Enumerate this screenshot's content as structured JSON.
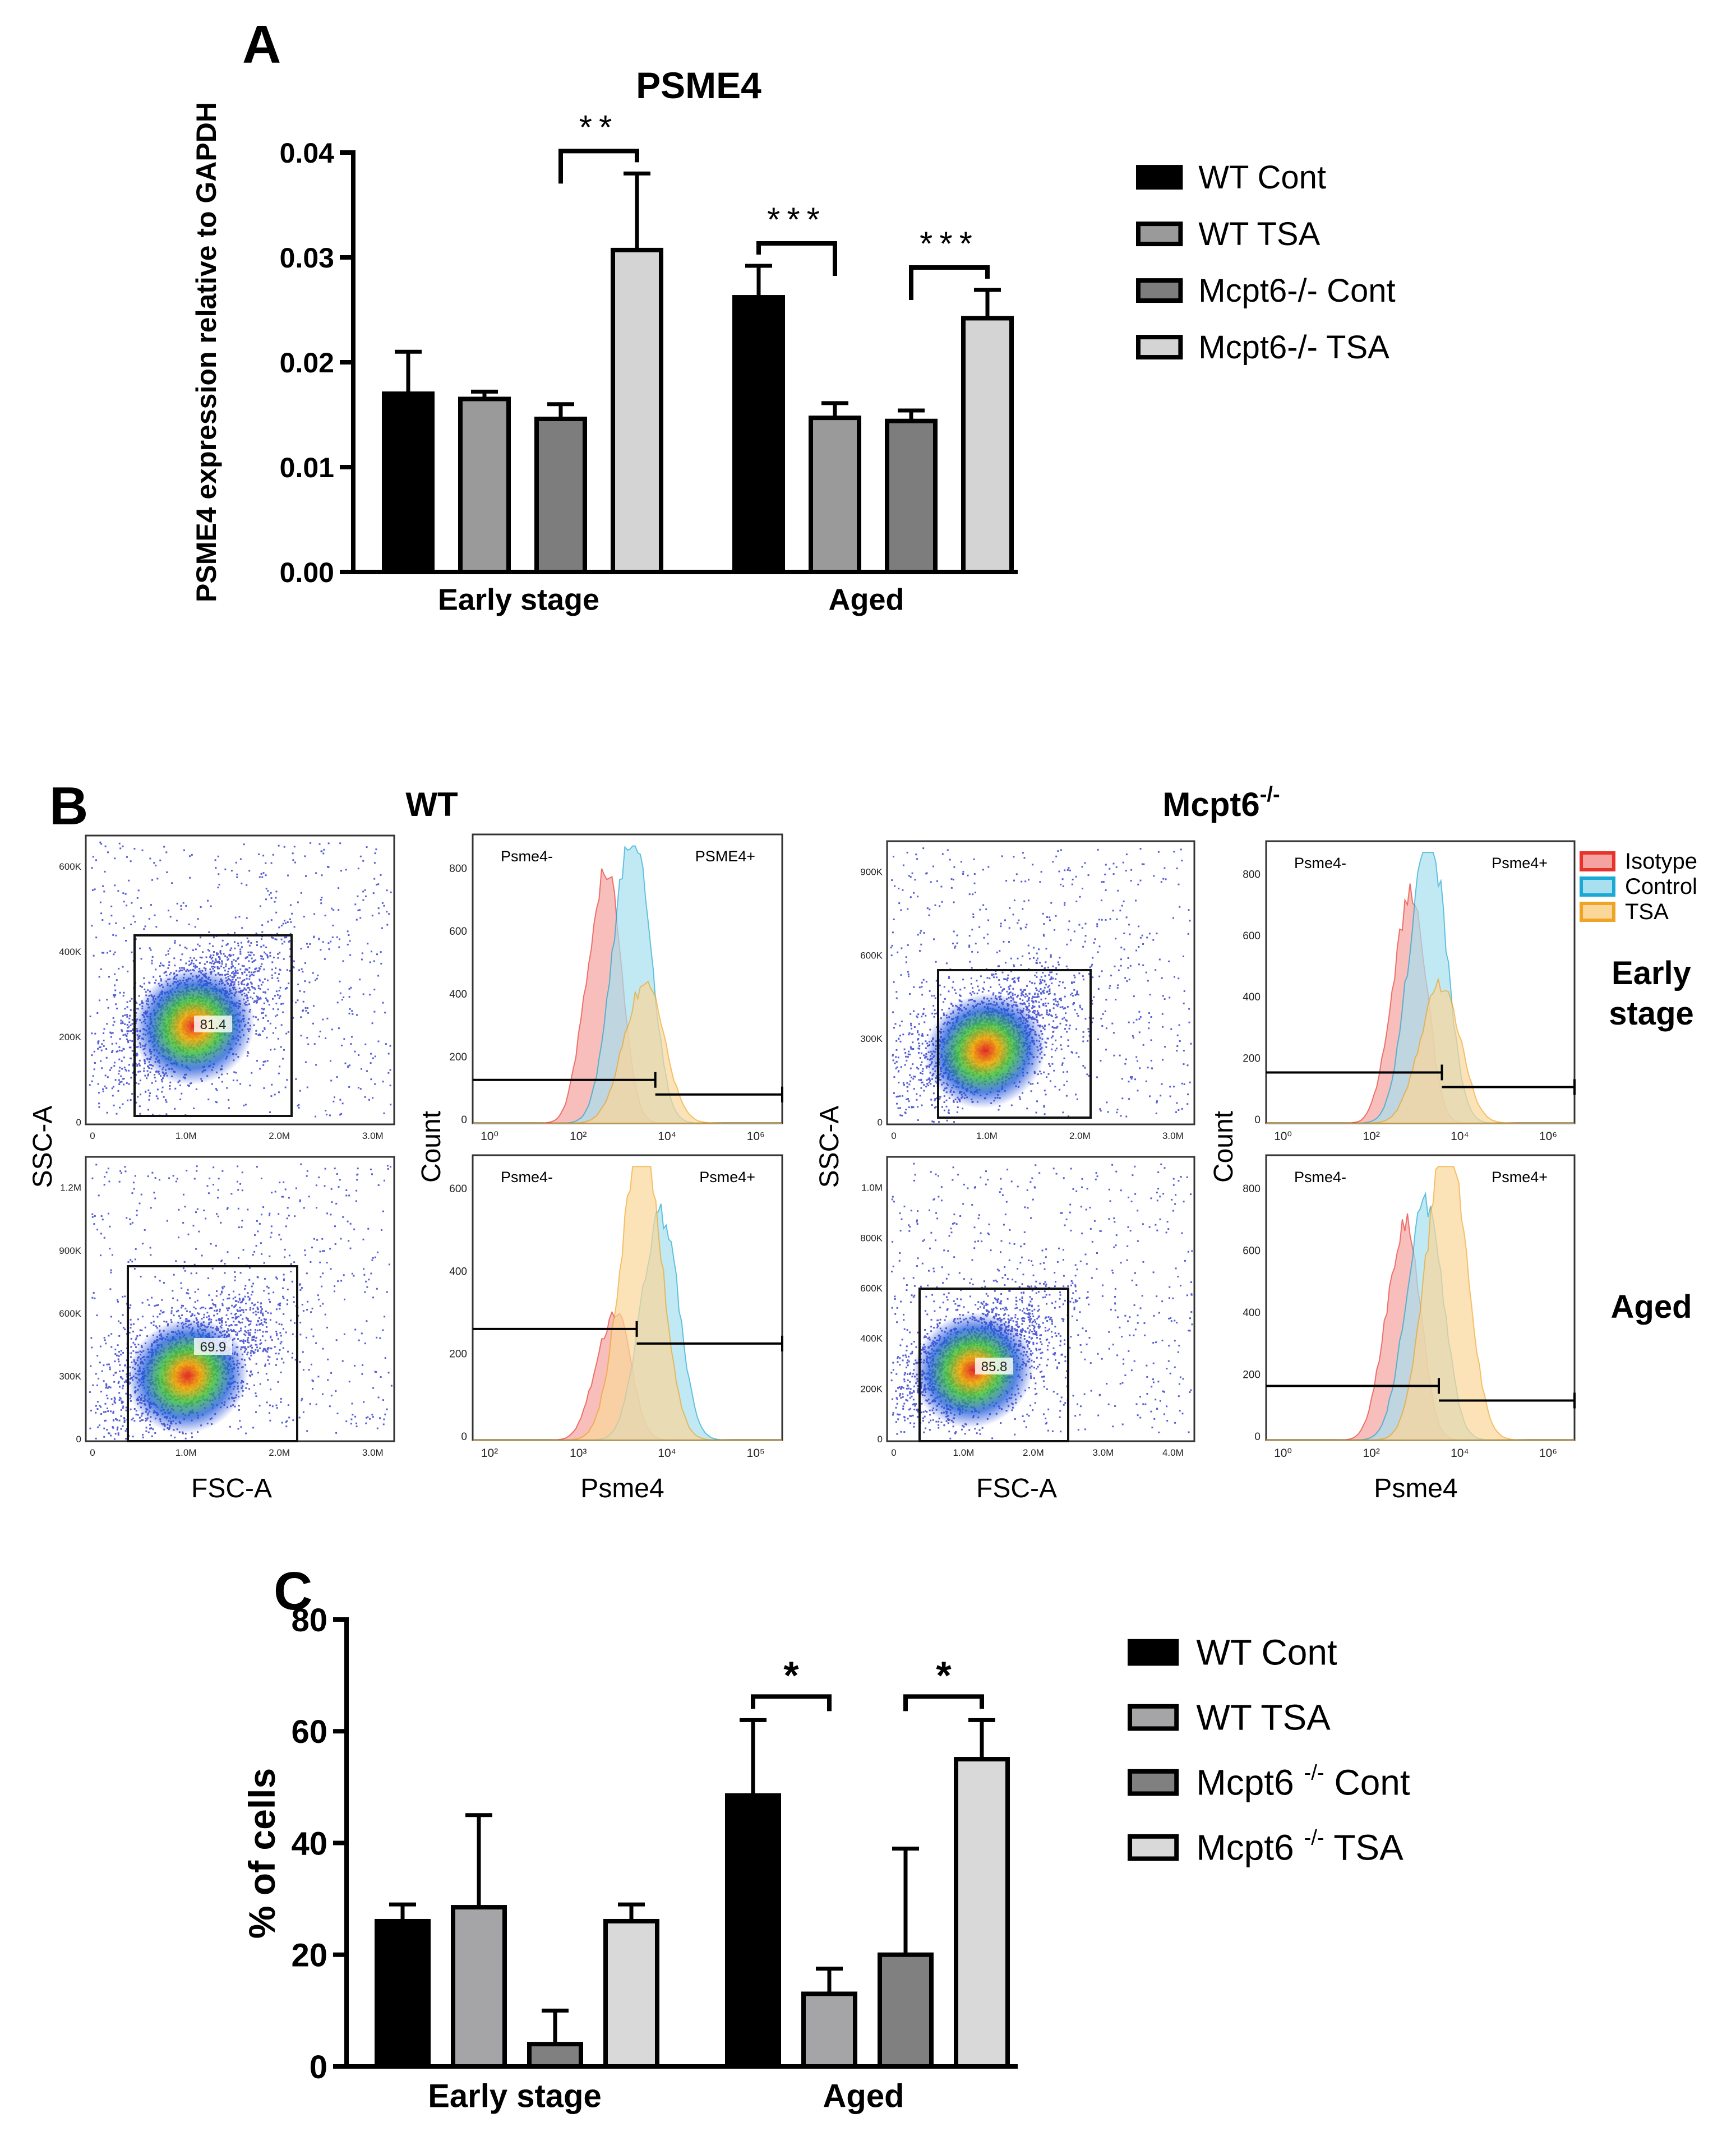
{
  "panels": {
    "a": "A",
    "b": "B",
    "c": "C"
  },
  "panel_b": {
    "genotype_wt": "WT",
    "genotype_ko": "Mcpt6",
    "genotype_ko_sup": "-/-",
    "row_early": [
      "Early",
      "stage"
    ],
    "row_aged": "Aged",
    "scatter_ylabel": "SSC-A",
    "scatter_xlabel": "FSC-A",
    "hist_ylabel": "Count",
    "hist_xlabel": "Psme4",
    "legend": [
      {
        "name": "Isotype",
        "fill": "#f5a3a0",
        "stroke": "#e8332b"
      },
      {
        "name": "Control",
        "fill": "#a8e0ef",
        "stroke": "#1aa8d4"
      },
      {
        "name": "TSA",
        "fill": "#fbd79a",
        "stroke": "#f0a425"
      }
    ],
    "scatter_plots": [
      {
        "id": "wt-early",
        "gate_percent": "81.4",
        "x_ticks": [
          "0",
          "1.0M",
          "2.0M",
          "3.0M"
        ],
        "y_ticks": [
          "0",
          "200K",
          "400K",
          "600K"
        ]
      },
      {
        "id": "ko-early",
        "gate_percent": "",
        "x_ticks": [
          "0",
          "1.0M",
          "2.0M",
          "3.0M"
        ],
        "y_ticks": [
          "0",
          "300K",
          "600K",
          "900K"
        ]
      },
      {
        "id": "wt-aged",
        "gate_percent": "69.9",
        "x_ticks": [
          "0",
          "1.0M",
          "2.0M",
          "3.0M"
        ],
        "y_ticks": [
          "0",
          "300K",
          "600K",
          "900K",
          "1.2M"
        ]
      },
      {
        "id": "ko-aged",
        "gate_percent": "85.8",
        "x_ticks": [
          "0",
          "1.0M",
          "2.0M",
          "3.0M",
          "4.0M"
        ],
        "y_ticks": [
          "0",
          "200K",
          "400K",
          "600K",
          "800K",
          "1.0M"
        ]
      }
    ],
    "histograms": [
      {
        "id": "wt-early",
        "neg_label": "Psme4-",
        "pos_label": "PSME4+",
        "y_ticks": [
          "0",
          "200",
          "400",
          "600",
          "800"
        ],
        "x_ticks": [
          "10⁰",
          "10²",
          "10⁴",
          "10⁶"
        ]
      },
      {
        "id": "ko-early",
        "neg_label": "Psme4-",
        "pos_label": "Psme4+",
        "y_ticks": [
          "0",
          "200",
          "400",
          "600",
          "800"
        ],
        "x_ticks": [
          "10⁰",
          "10²",
          "10⁴",
          "10⁶"
        ]
      },
      {
        "id": "wt-aged",
        "neg_label": "Psme4-",
        "pos_label": "Psme4+",
        "y_ticks": [
          "0",
          "200",
          "400",
          "600"
        ],
        "x_ticks": [
          "10²",
          "10³",
          "10⁴",
          "10⁵"
        ]
      },
      {
        "id": "ko-aged",
        "neg_label": "Psme4-",
        "pos_label": "Psme4+",
        "y_ticks": [
          "0",
          "200",
          "400",
          "600",
          "800"
        ],
        "x_ticks": [
          "10⁰",
          "10²",
          "10⁴",
          "10⁶"
        ]
      }
    ]
  },
  "chart_data": [
    {
      "type": "bar",
      "title": "PSME4",
      "ylabel": "PSME4 expression relative to GAPDH",
      "xlabel": "",
      "ylim": [
        0,
        0.04
      ],
      "y_ticks": [
        "0.00",
        "0.01",
        "0.02",
        "0.03",
        "0.04"
      ],
      "categories": [
        "Early stage",
        "Aged"
      ],
      "series": [
        {
          "name": "WT Cont",
          "color": "#000000",
          "values": [
            0.017,
            0.0262
          ],
          "errors": [
            0.004,
            0.003
          ]
        },
        {
          "name": "WT TSA",
          "color": "#9a9a9a",
          "values": [
            0.0165,
            0.0147
          ],
          "errors": [
            0.0007,
            0.0014
          ]
        },
        {
          "name": "Mcpt6-/- Cont",
          "color": "#7d7d7d",
          "values": [
            0.0146,
            0.0144
          ],
          "errors": [
            0.0014,
            0.001
          ]
        },
        {
          "name": "Mcpt6-/- TSA",
          "color": "#d4d4d4",
          "values": [
            0.0307,
            0.0242
          ],
          "errors": [
            0.0073,
            0.0027
          ]
        }
      ],
      "significance": [
        {
          "category": "Early stage",
          "from": "Mcpt6-/- Cont",
          "to": "Mcpt6-/- TSA",
          "label": "**"
        },
        {
          "category": "Aged",
          "from": "WT Cont",
          "to": "WT TSA",
          "label": "***"
        },
        {
          "category": "Aged",
          "from": "Mcpt6-/- Cont",
          "to": "Mcpt6-/- TSA",
          "label": "***"
        }
      ]
    },
    {
      "type": "bar",
      "title": "",
      "ylabel": "% of cells",
      "xlabel": "",
      "ylim": [
        0,
        80
      ],
      "y_ticks": [
        "0",
        "20",
        "40",
        "60",
        "80"
      ],
      "categories": [
        "Early stage",
        "Aged"
      ],
      "series": [
        {
          "name": "WT Cont",
          "legend_main": "WT Cont",
          "legend_sup": "",
          "legend_tail": "",
          "color": "#000000",
          "values": [
            26,
            48.5
          ],
          "errors": [
            3,
            13.5
          ]
        },
        {
          "name": "WT TSA",
          "legend_main": "WT TSA",
          "legend_sup": "",
          "legend_tail": "",
          "color": "#a5a5a8",
          "values": [
            28.5,
            13
          ],
          "errors": [
            16.5,
            4.5
          ]
        },
        {
          "name": "Mcpt6 -/- Cont",
          "legend_main": "Mcpt6 ",
          "legend_sup": "-/-",
          "legend_tail": " Cont",
          "color": "#808080",
          "values": [
            4,
            20
          ],
          "errors": [
            6,
            19
          ]
        },
        {
          "name": "Mcpt6 -/- TSA",
          "legend_main": "Mcpt6 ",
          "legend_sup": "-/-",
          "legend_tail": " TSA",
          "color": "#d9d9d9",
          "values": [
            26,
            55
          ],
          "errors": [
            3,
            7
          ]
        }
      ],
      "significance": [
        {
          "category": "Aged",
          "from": "WT Cont",
          "to": "WT TSA",
          "label": "*"
        },
        {
          "category": "Aged",
          "from": "Mcpt6 -/- Cont",
          "to": "Mcpt6 -/- TSA",
          "label": "*"
        }
      ]
    }
  ]
}
